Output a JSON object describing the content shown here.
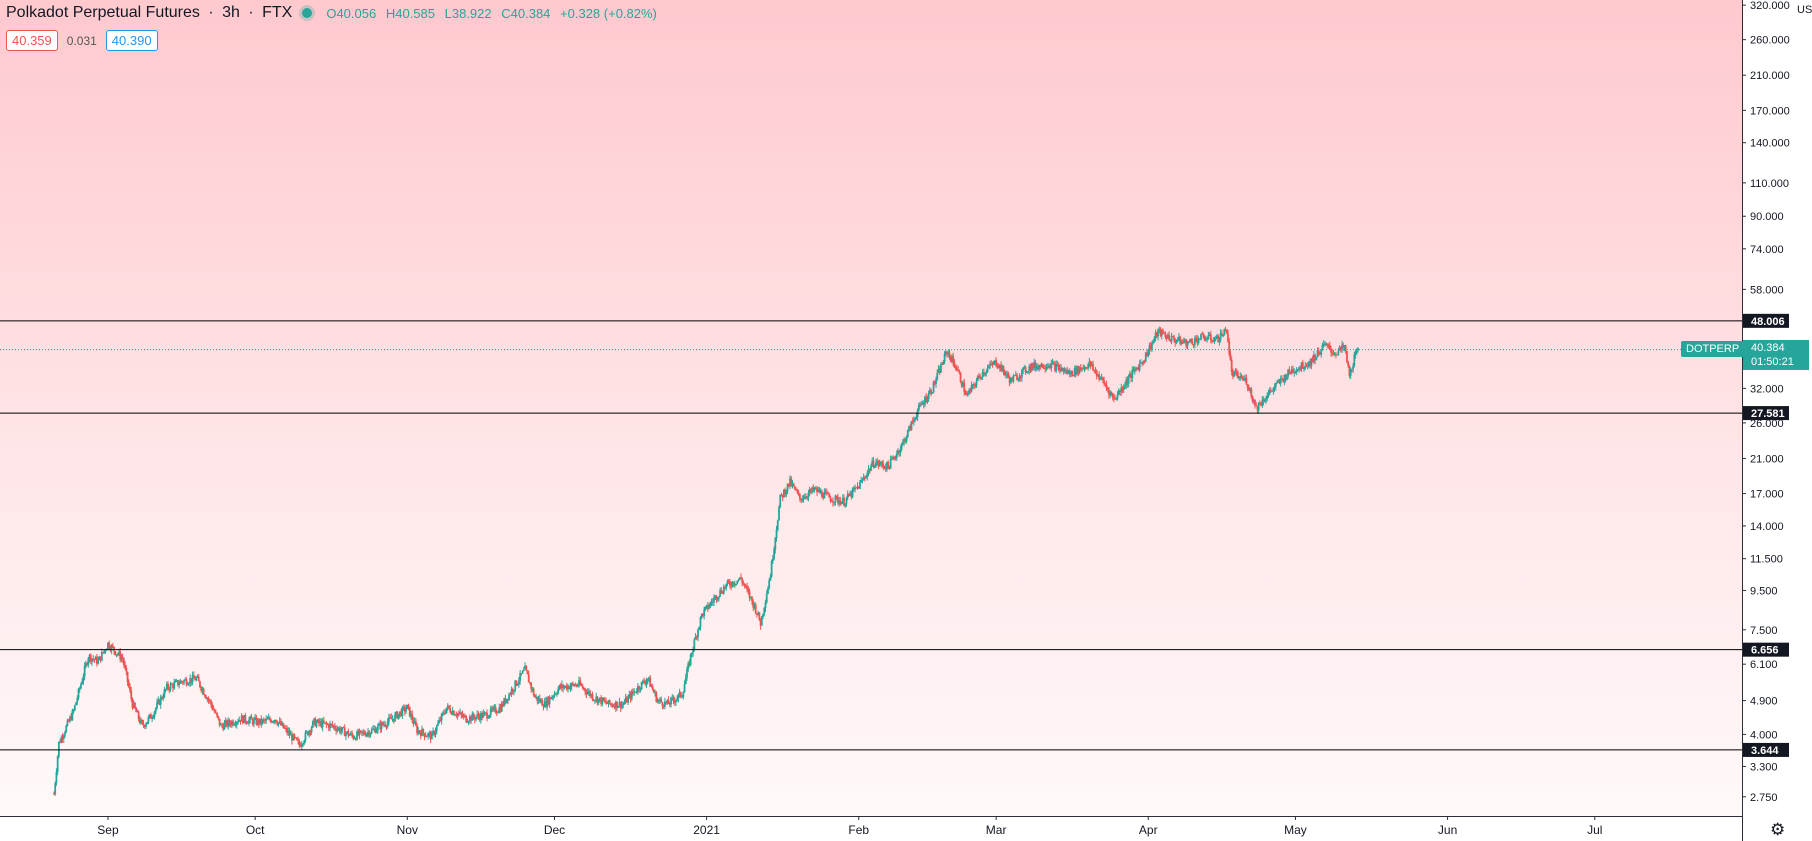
{
  "header": {
    "symbol_name": "Polkadot Perpetual Futures",
    "interval": "3h",
    "exchange": "FTX",
    "open": "O40.056",
    "high": "H40.585",
    "low": "L38.922",
    "close": "C40.384",
    "change": "+0.328 (+0.82%)"
  },
  "order_panel": {
    "sell_price": "40.359",
    "spread": "0.031",
    "buy_price": "40.390"
  },
  "axis": {
    "currency": "USD"
  },
  "current_price": {
    "symbol": "DOTPERP",
    "price": "40.384",
    "countdown": "01:50:21"
  },
  "colors": {
    "up": "#26a69a",
    "down": "#ef5350",
    "background_top": "#ffc9ce",
    "background_bottom": "#fffafa",
    "horizontal_line": "#000000"
  },
  "icons": {
    "status": "status-dot-icon",
    "settings": "gear-icon"
  },
  "chart_data": {
    "type": "candlestick",
    "y_scale": "log",
    "ylim": [
      2.45,
      330
    ],
    "y_ticks": [
      {
        "value": 320,
        "label": "320.000"
      },
      {
        "value": 260,
        "label": "260.000"
      },
      {
        "value": 210,
        "label": "210.000"
      },
      {
        "value": 170,
        "label": "170.000"
      },
      {
        "value": 140,
        "label": "140.000"
      },
      {
        "value": 110,
        "label": "110.000"
      },
      {
        "value": 90,
        "label": "90.000"
      },
      {
        "value": 74,
        "label": "74.000"
      },
      {
        "value": 58,
        "label": "58.000"
      },
      {
        "value": 32,
        "label": "32.000"
      },
      {
        "value": 26,
        "label": "26.000"
      },
      {
        "value": 21,
        "label": "21.000"
      },
      {
        "value": 17,
        "label": "17.000"
      },
      {
        "value": 14,
        "label": "14.000"
      },
      {
        "value": 11.5,
        "label": "11.500"
      },
      {
        "value": 9.5,
        "label": "9.500"
      },
      {
        "value": 7.5,
        "label": "7.500"
      },
      {
        "value": 6.1,
        "label": "6.100"
      },
      {
        "value": 4.9,
        "label": "4.900"
      },
      {
        "value": 4.0,
        "label": "4.000"
      },
      {
        "value": 3.3,
        "label": "3.300"
      },
      {
        "value": 2.75,
        "label": "2.750"
      }
    ],
    "horizontal_lines": [
      {
        "value": 48.006,
        "label": "48.006"
      },
      {
        "value": 27.581,
        "label": "27.581"
      },
      {
        "value": 6.656,
        "label": "6.656"
      },
      {
        "value": 3.644,
        "label": "3.644"
      }
    ],
    "current_price_line": 40.384,
    "x_range": [
      "2020-08-10",
      "2021-07-31"
    ],
    "x_ticks": [
      {
        "date": "2020-09-01",
        "label": "Sep"
      },
      {
        "date": "2020-10-01",
        "label": "Oct"
      },
      {
        "date": "2020-11-01",
        "label": "Nov"
      },
      {
        "date": "2020-12-01",
        "label": "Dec"
      },
      {
        "date": "2021-01-01",
        "label": "2021"
      },
      {
        "date": "2021-02-01",
        "label": "Feb"
      },
      {
        "date": "2021-03-01",
        "label": "Mar"
      },
      {
        "date": "2021-04-01",
        "label": "Apr"
      },
      {
        "date": "2021-05-01",
        "label": "May"
      },
      {
        "date": "2021-06-01",
        "label": "Jun"
      },
      {
        "date": "2021-07-01",
        "label": "Jul"
      }
    ],
    "price_path": [
      {
        "date": "2020-08-21",
        "price": 2.8
      },
      {
        "date": "2020-08-22",
        "price": 3.8
      },
      {
        "date": "2020-08-25",
        "price": 4.6
      },
      {
        "date": "2020-08-28",
        "price": 6.4
      },
      {
        "date": "2020-08-30",
        "price": 6.2
      },
      {
        "date": "2020-09-01",
        "price": 6.9
      },
      {
        "date": "2020-09-04",
        "price": 6.3
      },
      {
        "date": "2020-09-06",
        "price": 4.8
      },
      {
        "date": "2020-09-08",
        "price": 4.2
      },
      {
        "date": "2020-09-10",
        "price": 4.5
      },
      {
        "date": "2020-09-13",
        "price": 5.3
      },
      {
        "date": "2020-09-16",
        "price": 5.5
      },
      {
        "date": "2020-09-19",
        "price": 5.6
      },
      {
        "date": "2020-09-22",
        "price": 4.8
      },
      {
        "date": "2020-09-24",
        "price": 4.2
      },
      {
        "date": "2020-09-28",
        "price": 4.4
      },
      {
        "date": "2020-10-02",
        "price": 4.3
      },
      {
        "date": "2020-10-05",
        "price": 4.4
      },
      {
        "date": "2020-10-08",
        "price": 4.0
      },
      {
        "date": "2020-10-10",
        "price": 3.75
      },
      {
        "date": "2020-10-13",
        "price": 4.3
      },
      {
        "date": "2020-10-17",
        "price": 4.2
      },
      {
        "date": "2020-10-21",
        "price": 3.95
      },
      {
        "date": "2020-10-25",
        "price": 4.1
      },
      {
        "date": "2020-10-29",
        "price": 4.4
      },
      {
        "date": "2020-11-01",
        "price": 4.7
      },
      {
        "date": "2020-11-03",
        "price": 4.1
      },
      {
        "date": "2020-11-06",
        "price": 3.95
      },
      {
        "date": "2020-11-09",
        "price": 4.7
      },
      {
        "date": "2020-11-13",
        "price": 4.4
      },
      {
        "date": "2020-11-17",
        "price": 4.5
      },
      {
        "date": "2020-11-20",
        "price": 4.7
      },
      {
        "date": "2020-11-23",
        "price": 5.4
      },
      {
        "date": "2020-11-25",
        "price": 5.9
      },
      {
        "date": "2020-11-27",
        "price": 5.0
      },
      {
        "date": "2020-11-29",
        "price": 4.8
      },
      {
        "date": "2020-12-02",
        "price": 5.3
      },
      {
        "date": "2020-12-06",
        "price": 5.4
      },
      {
        "date": "2020-12-09",
        "price": 5.0
      },
      {
        "date": "2020-12-12",
        "price": 4.8
      },
      {
        "date": "2020-12-15",
        "price": 4.8
      },
      {
        "date": "2020-12-18",
        "price": 5.3
      },
      {
        "date": "2020-12-20",
        "price": 5.6
      },
      {
        "date": "2020-12-22",
        "price": 4.9
      },
      {
        "date": "2020-12-24",
        "price": 4.8
      },
      {
        "date": "2020-12-27",
        "price": 5.1
      },
      {
        "date": "2020-12-29",
        "price": 6.6
      },
      {
        "date": "2020-12-31",
        "price": 8.2
      },
      {
        "date": "2021-01-03",
        "price": 9.2
      },
      {
        "date": "2021-01-05",
        "price": 9.8
      },
      {
        "date": "2021-01-08",
        "price": 10.2
      },
      {
        "date": "2021-01-11",
        "price": 8.5
      },
      {
        "date": "2021-01-12",
        "price": 7.8
      },
      {
        "date": "2021-01-14",
        "price": 10.5
      },
      {
        "date": "2021-01-16",
        "price": 16.5
      },
      {
        "date": "2021-01-18",
        "price": 18.2
      },
      {
        "date": "2021-01-20",
        "price": 16.5
      },
      {
        "date": "2021-01-23",
        "price": 17.4
      },
      {
        "date": "2021-01-26",
        "price": 16.6
      },
      {
        "date": "2021-01-29",
        "price": 16.2
      },
      {
        "date": "2021-02-01",
        "price": 17.8
      },
      {
        "date": "2021-02-04",
        "price": 20.5
      },
      {
        "date": "2021-02-07",
        "price": 20.0
      },
      {
        "date": "2021-02-10",
        "price": 23.0
      },
      {
        "date": "2021-02-13",
        "price": 28.0
      },
      {
        "date": "2021-02-16",
        "price": 32.0
      },
      {
        "date": "2021-02-19",
        "price": 40.0
      },
      {
        "date": "2021-02-21",
        "price": 36.0
      },
      {
        "date": "2021-02-23",
        "price": 30.5
      },
      {
        "date": "2021-02-26",
        "price": 35.0
      },
      {
        "date": "2021-03-01",
        "price": 37.5
      },
      {
        "date": "2021-03-04",
        "price": 33.5
      },
      {
        "date": "2021-03-08",
        "price": 36.5
      },
      {
        "date": "2021-03-12",
        "price": 37.0
      },
      {
        "date": "2021-03-16",
        "price": 35.0
      },
      {
        "date": "2021-03-20",
        "price": 37.0
      },
      {
        "date": "2021-03-23",
        "price": 33.0
      },
      {
        "date": "2021-03-25",
        "price": 30.0
      },
      {
        "date": "2021-03-28",
        "price": 34.0
      },
      {
        "date": "2021-03-31",
        "price": 38.0
      },
      {
        "date": "2021-04-03",
        "price": 45.0
      },
      {
        "date": "2021-04-06",
        "price": 43.0
      },
      {
        "date": "2021-04-09",
        "price": 42.0
      },
      {
        "date": "2021-04-12",
        "price": 43.5
      },
      {
        "date": "2021-04-15",
        "price": 43.0
      },
      {
        "date": "2021-04-17",
        "price": 45.5
      },
      {
        "date": "2021-04-18",
        "price": 35.0
      },
      {
        "date": "2021-04-21",
        "price": 33.5
      },
      {
        "date": "2021-04-23",
        "price": 28.5
      },
      {
        "date": "2021-04-26",
        "price": 31.5
      },
      {
        "date": "2021-04-30",
        "price": 35.5
      },
      {
        "date": "2021-05-04",
        "price": 37.5
      },
      {
        "date": "2021-05-07",
        "price": 41.5
      },
      {
        "date": "2021-05-09",
        "price": 39.5
      },
      {
        "date": "2021-05-11",
        "price": 41.0
      },
      {
        "date": "2021-05-12",
        "price": 34.5
      },
      {
        "date": "2021-05-13",
        "price": 38.5
      },
      {
        "date": "2021-05-14",
        "price": 40.4
      }
    ]
  }
}
